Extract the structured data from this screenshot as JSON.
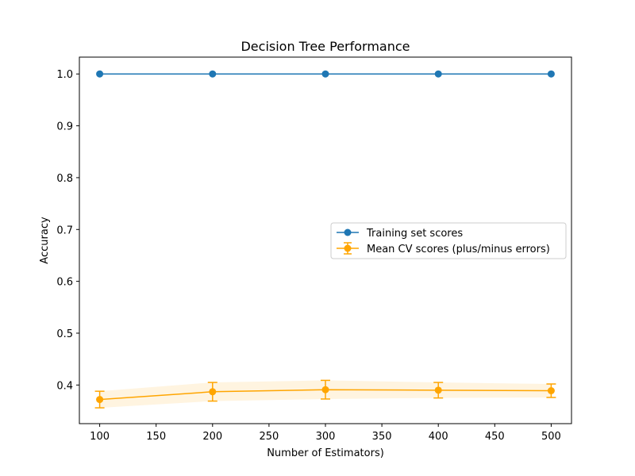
{
  "chart_data": {
    "type": "line",
    "title": "Decision Tree Performance",
    "xlabel": "Number of Estimators)",
    "ylabel": "Accuracy",
    "xlim": [
      82,
      518
    ],
    "ylim": [
      0.3255,
      1.0325
    ],
    "xticks": [
      100,
      150,
      200,
      250,
      300,
      350,
      400,
      450,
      500
    ],
    "yticks": [
      0.4,
      0.5,
      0.6,
      0.7,
      0.8,
      0.9,
      1.0
    ],
    "ytick_labels": [
      "0.4",
      "0.5",
      "0.6",
      "0.7",
      "0.8",
      "0.9",
      "1.0"
    ],
    "x": [
      100,
      200,
      300,
      400,
      500
    ],
    "grid": false,
    "legend_position": "right",
    "series": [
      {
        "name": "Training set scores",
        "color": "#1f77b4",
        "marker": "circle",
        "values": [
          1.0,
          1.0,
          1.0,
          1.0,
          1.0
        ]
      },
      {
        "name": "Mean CV scores (plus/minus errors)",
        "color": "#ffa500",
        "marker": "circle",
        "values": [
          0.372,
          0.387,
          0.391,
          0.39,
          0.389
        ],
        "errors": [
          0.016,
          0.018,
          0.018,
          0.015,
          0.013
        ]
      }
    ]
  }
}
